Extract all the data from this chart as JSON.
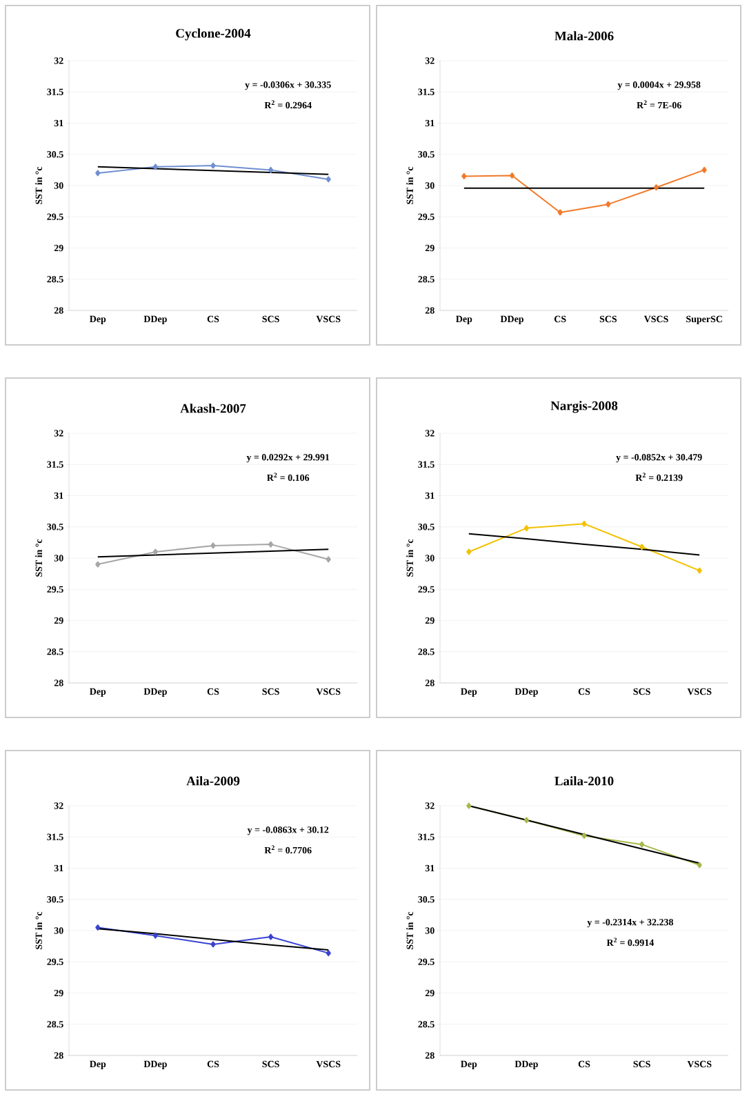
{
  "chart_data": [
    {
      "type": "line",
      "title": "Cyclone-2004",
      "ylabel": "SST in °c",
      "categories": [
        "Dep",
        "DDep",
        "CS",
        "SCS",
        "VSCS"
      ],
      "ylim": [
        28,
        32
      ],
      "yticks": [
        28,
        28.5,
        29,
        29.5,
        30,
        30.5,
        31,
        31.5,
        32
      ],
      "grid": "y",
      "series": [
        {
          "color": "#6f8fd0",
          "marker": "diamond",
          "values": [
            30.2,
            30.3,
            30.32,
            30.25,
            30.1
          ]
        },
        {
          "color": "#000000",
          "marker": "none",
          "values": [
            30.3,
            30.27,
            30.24,
            30.21,
            30.18
          ]
        }
      ],
      "annotations": [
        "y = -0.0306x + 30.335",
        "R$^{2}$ = 0.2964"
      ]
    },
    {
      "type": "line",
      "title": "Mala-2006",
      "ylabel": "SST in °c",
      "categories": [
        "Dep",
        "DDep",
        "CS",
        "SCS",
        "VSCS",
        "SuperSC"
      ],
      "ylim": [
        28,
        32
      ],
      "yticks": [
        28,
        28.5,
        29,
        29.5,
        30,
        30.5,
        31,
        31.5,
        32
      ],
      "grid": "y",
      "series": [
        {
          "color": "#f07a2a",
          "marker": "diamond",
          "values": [
            30.15,
            30.16,
            29.57,
            29.7,
            29.97,
            30.25
          ]
        },
        {
          "color": "#000000",
          "marker": "none",
          "values": [
            29.96,
            29.96,
            29.96,
            29.96,
            29.96,
            29.96
          ]
        }
      ],
      "annotations": [
        "y = 0.0004x + 29.958",
        "R$^{2}$ = 7E-06"
      ]
    },
    {
      "type": "line",
      "title": "Akash-2007",
      "ylabel": "SST in °c",
      "categories": [
        "Dep",
        "DDep",
        "CS",
        "SCS",
        "VSCS"
      ],
      "ylim": [
        28,
        32
      ],
      "yticks": [
        28,
        28.5,
        29,
        29.5,
        30,
        30.5,
        31,
        31.5,
        32
      ],
      "grid": "y",
      "series": [
        {
          "color": "#a6a6a6",
          "marker": "diamond",
          "values": [
            29.9,
            30.1,
            30.2,
            30.22,
            29.98
          ]
        },
        {
          "color": "#000000",
          "marker": "none",
          "values": [
            30.02,
            30.05,
            30.08,
            30.11,
            30.14
          ]
        }
      ],
      "annotations": [
        "y = 0.0292x + 29.991",
        "R$^{2}$ = 0.106"
      ]
    },
    {
      "type": "line",
      "title": "Nargis-2008",
      "ylabel": "SST in °c",
      "categories": [
        "Dep",
        "DDep",
        "CS",
        "SCS",
        "VSCS"
      ],
      "ylim": [
        28,
        32
      ],
      "yticks": [
        28,
        28.5,
        29,
        29.5,
        30,
        30.5,
        31,
        31.5,
        32
      ],
      "grid": "y",
      "series": [
        {
          "color": "#f2c200",
          "marker": "diamond",
          "values": [
            30.1,
            30.48,
            30.55,
            30.18,
            29.8
          ]
        },
        {
          "color": "#000000",
          "marker": "none",
          "values": [
            30.39,
            30.31,
            30.22,
            30.14,
            30.05
          ]
        }
      ],
      "annotations": [
        "y = -0.0852x + 30.479",
        "R$^{2}$ = 0.2139"
      ]
    },
    {
      "type": "line",
      "title": "Aila-2009",
      "ylabel": "SST in °c",
      "categories": [
        "Dep",
        "DDep",
        "CS",
        "SCS",
        "VSCS"
      ],
      "ylim": [
        28,
        32
      ],
      "yticks": [
        28,
        28.5,
        29,
        29.5,
        30,
        30.5,
        31,
        31.5,
        32
      ],
      "grid": "y",
      "series": [
        {
          "color": "#3a44d0",
          "marker": "diamond",
          "values": [
            30.05,
            29.92,
            29.78,
            29.9,
            29.64
          ]
        },
        {
          "color": "#000000",
          "marker": "none",
          "values": [
            30.03,
            29.95,
            29.86,
            29.77,
            29.69
          ]
        }
      ],
      "annotations": [
        "y = -0.0863x + 30.12",
        "R$^{2}$ = 0.7706"
      ]
    },
    {
      "type": "line",
      "title": "Laila-2010",
      "ylabel": "SST in °c",
      "categories": [
        "Dep",
        "DDep",
        "CS",
        "SCS",
        "VSCS"
      ],
      "ylim": [
        28,
        32
      ],
      "yticks": [
        28,
        28.5,
        29,
        29.5,
        30,
        30.5,
        31,
        31.5,
        32
      ],
      "grid": "y",
      "series": [
        {
          "color": "#a8b84a",
          "marker": "diamond",
          "values": [
            32.0,
            31.77,
            31.52,
            31.38,
            31.05
          ]
        },
        {
          "color": "#000000",
          "marker": "none",
          "values": [
            32.0,
            31.77,
            31.54,
            31.31,
            31.08
          ]
        }
      ],
      "annotations": [
        "y = -0.2314x + 32.238",
        "R$^{2}$ = 0.9914"
      ]
    }
  ]
}
